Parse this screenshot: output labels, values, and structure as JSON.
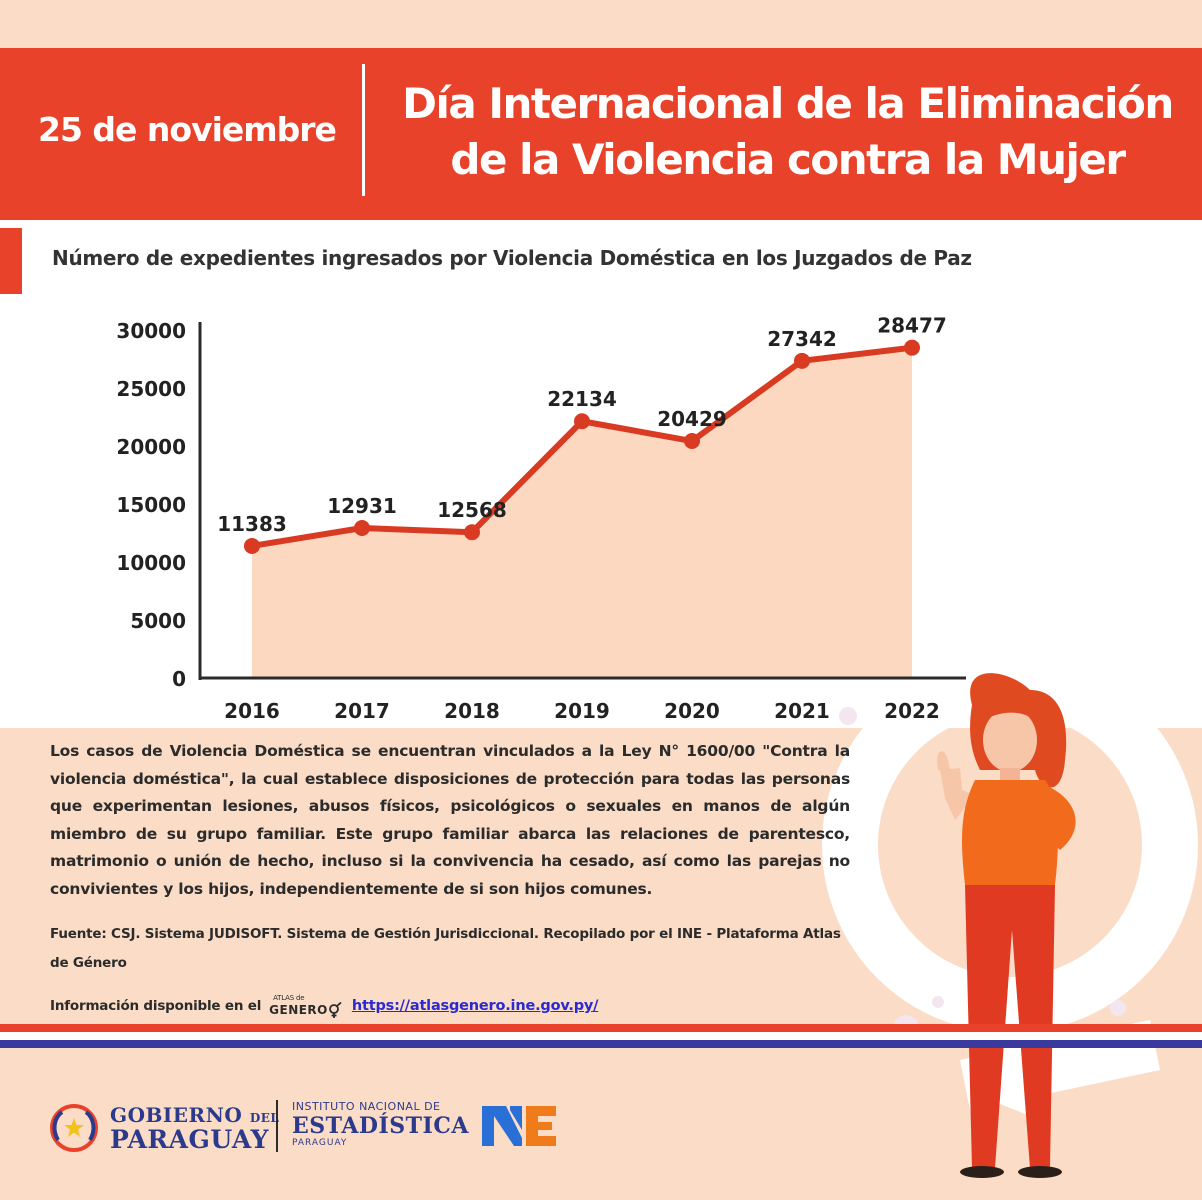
{
  "header": {
    "date": "25 de noviembre",
    "title_line1": "Día Internacional de la Eliminación",
    "title_line2": "de la Violencia contra la Mujer"
  },
  "chart_title": "Número de expedientes ingresados por Violencia Doméstica en los Juzgados de Paz",
  "chart_data": {
    "type": "area",
    "title": "Número de expedientes ingresados por Violencia Doméstica en los Juzgados de Paz",
    "xlabel": "",
    "ylabel": "",
    "x": [
      "2016",
      "2017",
      "2018",
      "2019",
      "2020",
      "2021",
      "2022"
    ],
    "series": [
      {
        "values": [
          11383,
          12931,
          12568,
          22134,
          20429,
          27342,
          28477
        ]
      }
    ],
    "data_labels": [
      "11383",
      "12931",
      "12568",
      "22134",
      "20429",
      "27342",
      "28477"
    ],
    "ylim": [
      0,
      30000
    ],
    "yticks": [
      0,
      5000,
      10000,
      15000,
      20000,
      25000,
      30000
    ],
    "ytick_labels": [
      "0",
      "5000",
      "10000",
      "15000",
      "20000",
      "25000",
      "30000"
    ],
    "grid": false,
    "legend": "none",
    "colors": {
      "line": "#d93a22",
      "fill": "#fcd8c0",
      "marker": "#d93a22",
      "axis": "#2b2b2b"
    }
  },
  "body_text": "Los casos de Violencia Doméstica se encuentran vinculados a la Ley N° 1600/00 \"Contra la violencia doméstica\", la cual establece disposiciones de protección para todas las personas que experimentan lesiones, abusos físicos, psicológicos o sexuales en manos de algún miembro de su grupo familiar. Este grupo familiar abarca las relaciones de parentesco, matrimonio o unión de hecho, incluso si la convivencia ha cesado, así como las parejas no convivientes y los hijos, independientemente de si son hijos comunes.",
  "source_text": "Fuente: CSJ. Sistema JUDISOFT. Sistema de Gestión Jurisdiccional. Recopilado por el INE - Plataforma Atlas de Género",
  "info": {
    "label": "Información disponible en el",
    "atlas_small": "ATLAS de",
    "atlas_big": "GENERO",
    "link": "https://atlasgenero.ine.gov.py/"
  },
  "footer": {
    "gob_line1": "GOBIERNO",
    "gob_del": "DEL",
    "gob_line2": "PARAGUAY",
    "ine_line1": "INSTITUTO NACIONAL DE",
    "ine_line2": "ESTADÍSTICA",
    "ine_line3": "PARAGUAY"
  },
  "colors": {
    "brand_red": "#e8432a",
    "peach_bg": "#fbdcc6",
    "navy": "#2b3a8c",
    "link_blue": "#2a2ad0"
  }
}
